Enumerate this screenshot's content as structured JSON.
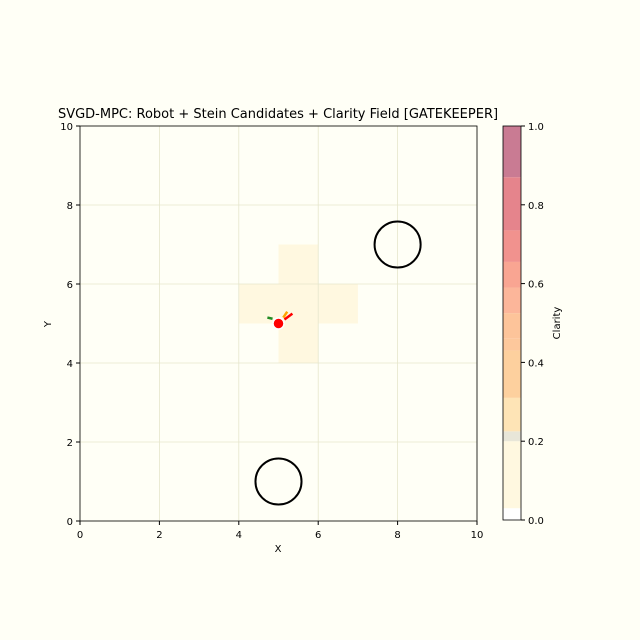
{
  "chart_data": {
    "type": "heatmap",
    "title": "SVGD-MPC: Robot + Stein Candidates + Clarity Field [GATEKEEPER]",
    "xlabel": "X",
    "ylabel": "Y",
    "xlim": [
      0,
      10
    ],
    "ylim": [
      0,
      10
    ],
    "xticks": [
      0,
      2,
      4,
      6,
      8,
      10
    ],
    "yticks": [
      0,
      2,
      4,
      6,
      8,
      10
    ],
    "grid": true,
    "clarity_cells": [
      {
        "x0": 4,
        "x1": 7,
        "y0": 5,
        "y1": 6,
        "value": 0.1
      },
      {
        "x0": 5,
        "x1": 6,
        "y0": 4,
        "y1": 7,
        "value": 0.1
      }
    ],
    "obstacles": [
      {
        "cx": 8,
        "cy": 7,
        "r": 0.58
      },
      {
        "cx": 5,
        "cy": 1,
        "r": 0.58
      }
    ],
    "robot": {
      "x": 5,
      "y": 5,
      "color": "#ff0000"
    },
    "candidates": [
      {
        "points": [
          [
            4.85,
            5.12
          ],
          [
            4.72,
            5.15
          ]
        ],
        "color": "#228b22"
      },
      {
        "points": [
          [
            5.12,
            5.15
          ],
          [
            5.22,
            5.3
          ]
        ],
        "color": "#ffa500"
      },
      {
        "points": [
          [
            5.15,
            5.1
          ],
          [
            5.35,
            5.25
          ]
        ],
        "color": "#ff0000"
      }
    ],
    "colorbar": {
      "label": "Clarity",
      "range": [
        0,
        1
      ],
      "ticks": [
        "0.0",
        "0.2",
        "0.4",
        "0.6",
        "0.8",
        "1.0"
      ],
      "bands": [
        {
          "from": 0.0,
          "to": 0.03,
          "color": "#ffffff"
        },
        {
          "from": 0.03,
          "to": 0.2,
          "color": "#fff8e0"
        },
        {
          "from": 0.2,
          "to": 0.225,
          "color": "#e8e6d8"
        },
        {
          "from": 0.225,
          "to": 0.31,
          "color": "#fee4b6"
        },
        {
          "from": 0.31,
          "to": 0.43,
          "color": "#fdd09e"
        },
        {
          "from": 0.43,
          "to": 0.46,
          "color": "#fdc89c"
        },
        {
          "from": 0.46,
          "to": 0.525,
          "color": "#fdc49a"
        },
        {
          "from": 0.525,
          "to": 0.59,
          "color": "#fcb69a"
        },
        {
          "from": 0.59,
          "to": 0.655,
          "color": "#f9a592"
        },
        {
          "from": 0.655,
          "to": 0.735,
          "color": "#f1928e"
        },
        {
          "from": 0.735,
          "to": 0.87,
          "color": "#e5848c"
        },
        {
          "from": 0.87,
          "to": 1.0,
          "color": "#c97b93"
        }
      ]
    }
  }
}
